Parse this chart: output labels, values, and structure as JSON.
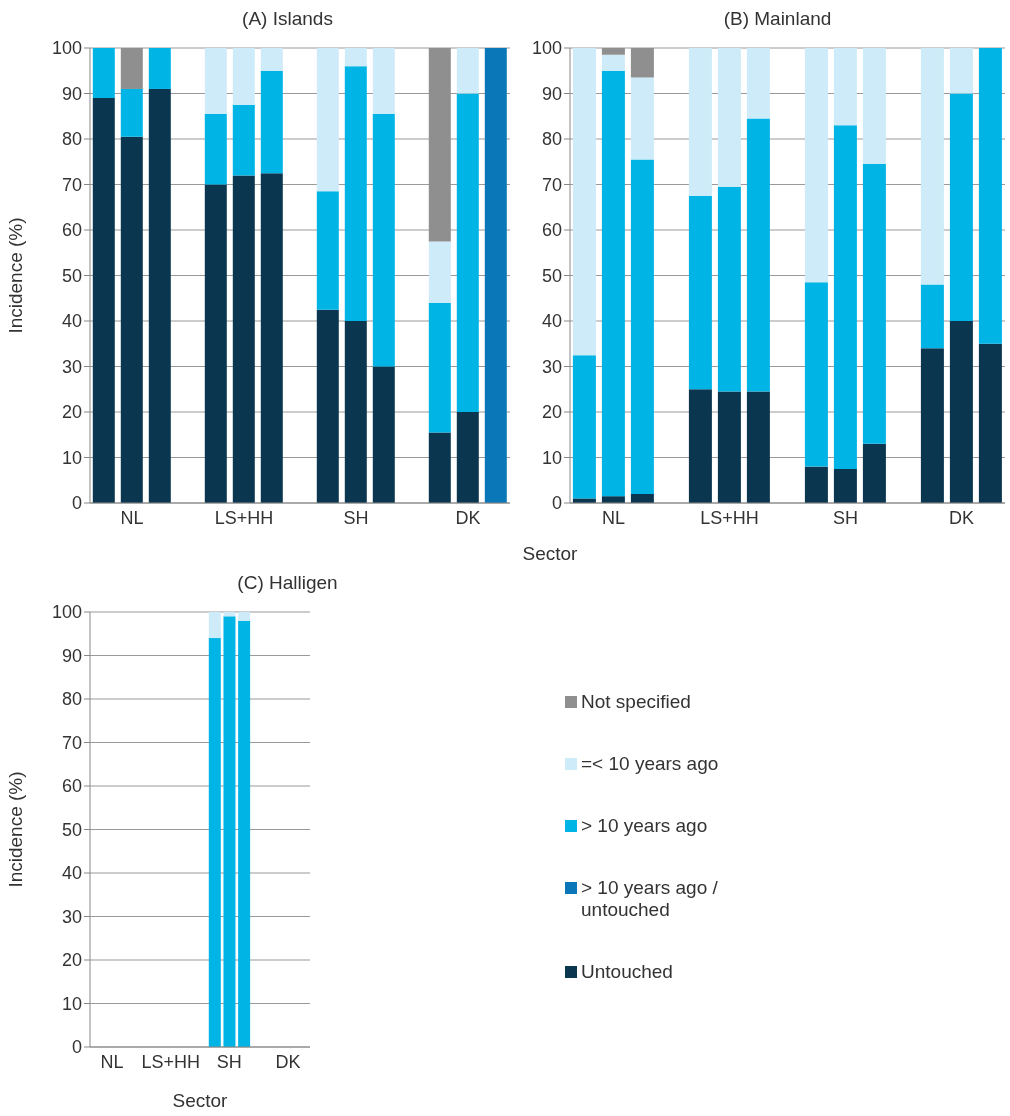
{
  "chart_data": [
    {
      "type": "bar",
      "title": "(A) Islands",
      "xlabel": "Sector",
      "ylabel": "Incidence (%)",
      "stacked": true,
      "categories": [
        null,
        "NL",
        null,
        null,
        null,
        "LS+HH",
        null,
        null,
        null,
        "SH",
        null,
        null,
        null,
        "DK",
        null
      ],
      "ylim": [
        0,
        100
      ],
      "yticks": [
        0,
        10,
        20,
        30,
        40,
        50,
        60,
        70,
        80,
        90,
        100
      ],
      "grid": "y",
      "legend": false,
      "series": [
        {
          "color": "#0b3650",
          "values": [
            89,
            80.5,
            91,
            null,
            70,
            72,
            72.5,
            null,
            42.5,
            40,
            30,
            null,
            15.5,
            20,
            null
          ]
        },
        {
          "color": "#0a78b8",
          "values": [
            null,
            null,
            null,
            null,
            null,
            null,
            null,
            null,
            null,
            null,
            null,
            null,
            null,
            null,
            100
          ]
        },
        {
          "color": "#00b4e6",
          "values": [
            11,
            10.5,
            9,
            null,
            15.5,
            15.5,
            22.5,
            null,
            26,
            56,
            55.5,
            null,
            28.5,
            70,
            null
          ]
        },
        {
          "color": "#cdebf8",
          "values": [
            null,
            null,
            null,
            null,
            14.5,
            12.5,
            5,
            null,
            31.5,
            4,
            14.5,
            null,
            13.5,
            10,
            null
          ]
        },
        {
          "color": "#8f8f8f",
          "values": [
            null,
            9,
            null,
            null,
            null,
            null,
            null,
            null,
            null,
            null,
            null,
            null,
            42.5,
            null,
            null
          ]
        }
      ]
    },
    {
      "type": "bar",
      "title": "(B) Mainland",
      "stacked": true,
      "categories": [
        null,
        "NL",
        null,
        null,
        null,
        "LS+HH",
        null,
        null,
        null,
        "SH",
        null,
        null,
        null,
        "DK",
        null
      ],
      "ylim": [
        0,
        100
      ],
      "yticks": [
        0,
        10,
        20,
        30,
        40,
        50,
        60,
        70,
        80,
        90,
        100
      ],
      "grid": "y",
      "legend": false,
      "series": [
        {
          "color": "#0b3650",
          "values": [
            1,
            1.5,
            2,
            null,
            25,
            24.5,
            24.5,
            null,
            8,
            7.5,
            13,
            null,
            34,
            40,
            35
          ]
        },
        {
          "color": "#00b4e6",
          "values": [
            31.5,
            93.5,
            73.5,
            null,
            42.5,
            45,
            60,
            null,
            40.5,
            75.5,
            61.5,
            null,
            14,
            50,
            65
          ]
        },
        {
          "color": "#cdebf8",
          "values": [
            67.5,
            3.5,
            18,
            null,
            32.5,
            30.5,
            15.5,
            null,
            51.5,
            17,
            25.5,
            null,
            52,
            10,
            null
          ]
        },
        {
          "color": "#8f8f8f",
          "values": [
            null,
            1.5,
            6.5,
            null,
            null,
            null,
            null,
            null,
            null,
            null,
            null,
            null,
            null,
            null,
            null
          ]
        }
      ]
    },
    {
      "type": "bar",
      "title": "(C) Halligen",
      "xlabel": "Sector",
      "ylabel": "Incidence (%)",
      "stacked": true,
      "categories": [
        null,
        "NL",
        null,
        null,
        null,
        "LS+HH",
        null,
        null,
        null,
        "SH",
        null,
        null,
        null,
        "DK",
        null
      ],
      "ylim": [
        0,
        100
      ],
      "yticks": [
        0,
        10,
        20,
        30,
        40,
        50,
        60,
        70,
        80,
        90,
        100
      ],
      "grid": "y",
      "legend": "right",
      "series": [
        {
          "name": "Untouched",
          "color": "#0b3650",
          "values": [
            null,
            null,
            null,
            null,
            null,
            null,
            null,
            null,
            null,
            null,
            null,
            null,
            null,
            null,
            null
          ]
        },
        {
          "name": "> 10 years ago / untouched",
          "color": "#0a78b8",
          "values": [
            null,
            null,
            null,
            null,
            null,
            null,
            null,
            null,
            null,
            null,
            null,
            null,
            null,
            null,
            null
          ]
        },
        {
          "name": "> 10 years ago",
          "color": "#00b4e6",
          "values": [
            null,
            null,
            null,
            null,
            null,
            null,
            null,
            null,
            94,
            99,
            98,
            null,
            null,
            null,
            null
          ]
        },
        {
          "name": "=< 10 years ago",
          "color": "#cdebf8",
          "values": [
            null,
            null,
            null,
            null,
            null,
            null,
            null,
            null,
            6,
            1,
            2,
            null,
            null,
            null,
            null
          ]
        },
        {
          "name": "Not specified",
          "color": "#8f8f8f",
          "values": [
            null,
            null,
            null,
            null,
            null,
            null,
            null,
            null,
            null,
            null,
            null,
            null,
            null,
            null,
            null
          ]
        }
      ]
    }
  ]
}
